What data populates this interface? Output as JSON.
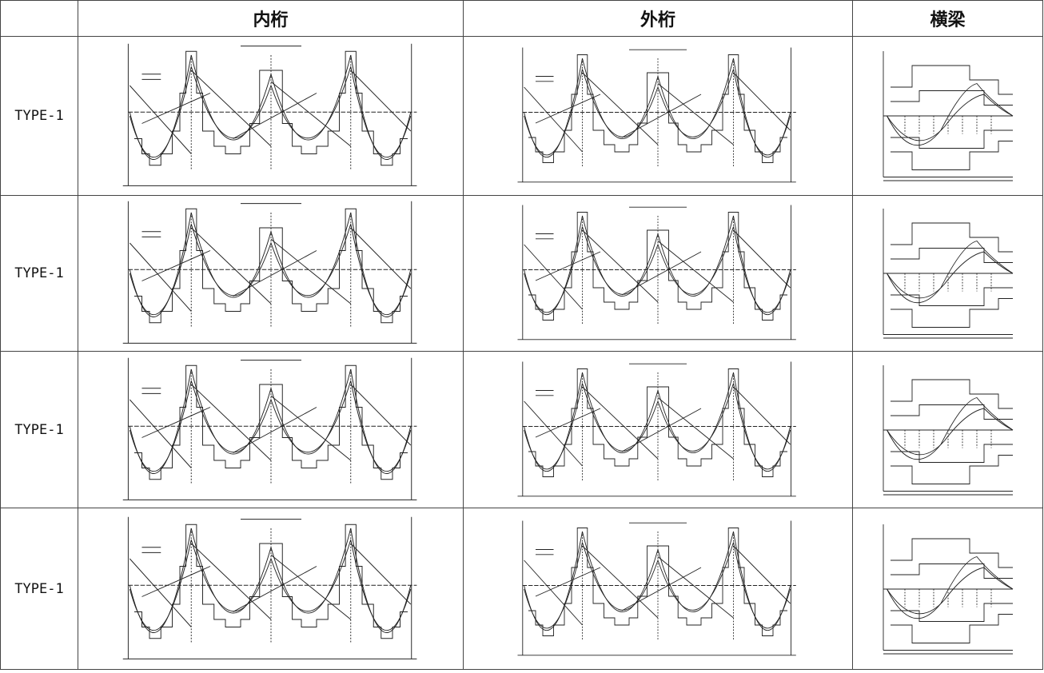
{
  "table": {
    "header": [
      "内桁",
      "外桁",
      "横梁"
    ],
    "rows": [
      [
        "TYPE-1"
      ],
      [
        "TYPE-1"
      ],
      [
        "TYPE-1"
      ],
      [
        "TYPE-1"
      ]
    ]
  }
}
